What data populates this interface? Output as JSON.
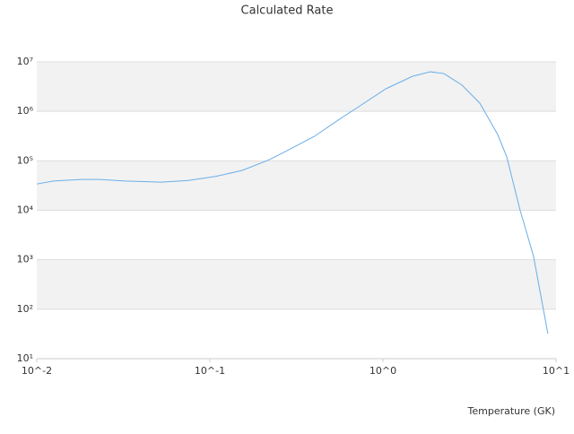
{
  "chart_data": {
    "type": "line",
    "title": "Calculated Rate",
    "x_label": "Temperature (GK)",
    "x_log": true,
    "y_log": true,
    "bands": "alternating",
    "xlim": [
      0.01,
      10
    ],
    "ylim": [
      10,
      10000000
    ],
    "xticks": [
      {
        "value": 0.01,
        "label": "10^-2"
      },
      {
        "value": 0.1,
        "label": "10^-1"
      },
      {
        "value": 1,
        "label": "10^0"
      },
      {
        "value": 10,
        "label": "10^1"
      }
    ],
    "yticks": [
      {
        "value": 10,
        "label": "10¹"
      },
      {
        "value": 100,
        "label": "10²"
      },
      {
        "value": 1000,
        "label": "10³"
      },
      {
        "value": 10000,
        "label": "10⁴"
      },
      {
        "value": 100000,
        "label": "10⁵"
      },
      {
        "value": 1000000,
        "label": "10⁶"
      },
      {
        "value": 10000000,
        "label": "10⁷"
      }
    ],
    "x": [
      0.01,
      0.0125,
      0.018,
      0.0228,
      0.0326,
      0.0525,
      0.075,
      0.107,
      0.154,
      0.22,
      0.279,
      0.4,
      0.57,
      0.724,
      1.04,
      1.48,
      1.88,
      2.25,
      2.86,
      3.63,
      4.6,
      5.19,
      6.2,
      7.4,
      8.97
    ],
    "series": [
      {
        "color": "#6aaee8",
        "values": [
          34000,
          39000,
          42000,
          42000,
          39000,
          37000,
          40000,
          48000,
          64000,
          105000,
          160000,
          310000,
          720000,
          1240000,
          2860000,
          5100000,
          6300000,
          5800000,
          3400000,
          1460000,
          340000,
          120000,
          10000,
          1200,
          32
        ]
      }
    ]
  }
}
